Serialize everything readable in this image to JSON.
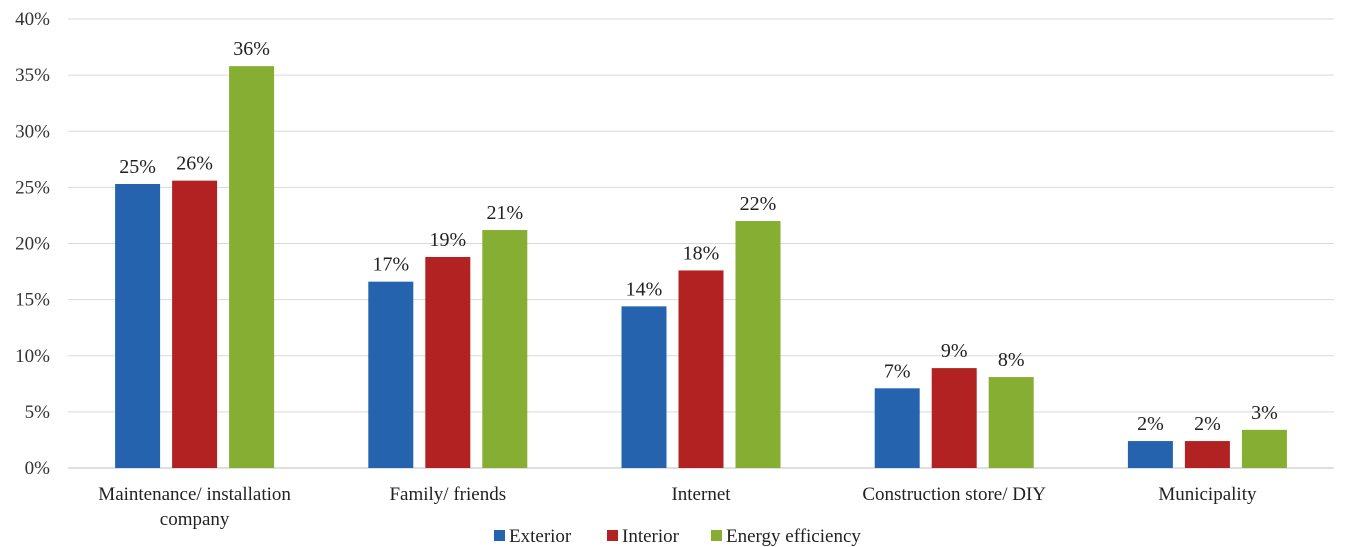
{
  "chart_data": {
    "type": "bar",
    "categories": [
      [
        "Maintenance/ installation",
        "company"
      ],
      [
        "Family/ friends"
      ],
      [
        "Internet"
      ],
      [
        "Construction store/ DIY"
      ],
      [
        "Municipality"
      ]
    ],
    "series": [
      {
        "name": "Exterior",
        "color": "#2563ae",
        "values": [
          25.3,
          16.6,
          14.4,
          7.1,
          2.4
        ],
        "labels": [
          "25%",
          "17%",
          "14%",
          "7%",
          "2%"
        ]
      },
      {
        "name": "Interior",
        "color": "#b22222",
        "values": [
          25.6,
          18.8,
          17.6,
          8.9,
          2.4
        ],
        "labels": [
          "26%",
          "19%",
          "18%",
          "9%",
          "2%"
        ]
      },
      {
        "name": "Energy efficiency",
        "color": "#86ae32",
        "values": [
          35.8,
          21.2,
          22.0,
          8.1,
          3.4
        ],
        "labels": [
          "36%",
          "21%",
          "22%",
          "8%",
          "3%"
        ]
      }
    ],
    "yticks": [
      "0%",
      "5%",
      "10%",
      "15%",
      "20%",
      "25%",
      "30%",
      "35%",
      "40%"
    ],
    "ylim": [
      0,
      40
    ],
    "ytick_values": [
      0,
      5,
      10,
      15,
      20,
      25,
      30,
      35,
      40
    ],
    "grid": true,
    "legend_position": "bottom-center",
    "title": "",
    "xlabel": "",
    "ylabel": ""
  }
}
